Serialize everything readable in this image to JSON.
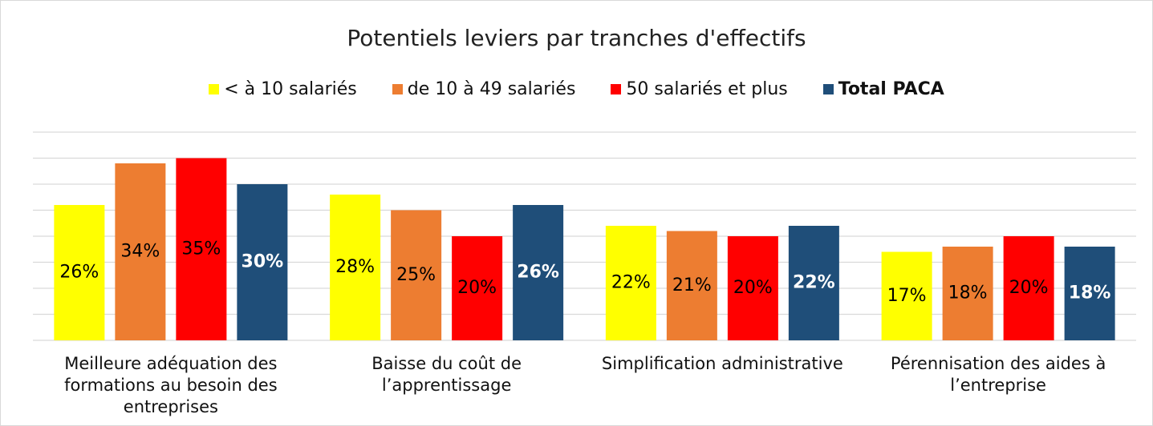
{
  "chart_data": {
    "type": "bar",
    "title": "Potentiels leviers par tranches d'effectifs",
    "categories": [
      "Meilleure adéquation des formations au besoin des entreprises",
      "Baisse du coût de l’apprentissage",
      "Simplification administrative",
      "Pérennisation des aides à l’entreprise"
    ],
    "series": [
      {
        "name": "< à 10 salariés",
        "color": "#ffff00",
        "label_color": "#000000",
        "values": [
          26,
          28,
          22,
          17
        ],
        "value_labels": [
          "26%",
          "28%",
          "22%",
          "17%"
        ]
      },
      {
        "name": "de 10 à 49 salariés",
        "color": "#ed7d31",
        "label_color": "#000000",
        "values": [
          34,
          25,
          21,
          18
        ],
        "value_labels": [
          "34%",
          "25%",
          "21%",
          "18%"
        ]
      },
      {
        "name": "50 salariés et plus",
        "color": "#ff0000",
        "label_color": "#000000",
        "values": [
          35,
          20,
          20,
          20
        ],
        "value_labels": [
          "35%",
          "20%",
          "20%",
          "20%"
        ]
      },
      {
        "name": "Total PACA",
        "color": "#1f4e79",
        "label_color": "#ffffff",
        "bold": true,
        "values": [
          30,
          26,
          22,
          18
        ],
        "value_labels": [
          "30%",
          "26%",
          "22%",
          "18%"
        ]
      }
    ],
    "ylim": [
      0,
      40
    ],
    "yticks": [
      0,
      5,
      10,
      15,
      20,
      25,
      30,
      35,
      40
    ],
    "grid": true,
    "legend": "top"
  }
}
